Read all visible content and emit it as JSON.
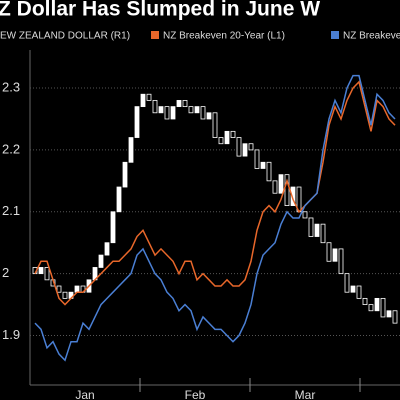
{
  "chart_data": {
    "type": "line",
    "title": "Z Dollar Has Slumped in June W",
    "legend": [
      "EW ZEALAND DOLLAR (R1)",
      "NZ Breakeven 20-Year (L1)",
      "NZ Breakeve"
    ],
    "x_labels": [
      "Jan",
      "Feb",
      "Mar"
    ],
    "ylim": [
      1.82,
      2.41
    ],
    "yticks": [
      1.9,
      2.0,
      2.1,
      2.2,
      2.3
    ],
    "grid": true,
    "candles": {
      "color_up": "#ffffff",
      "color_down": "#000000",
      "open": [
        2.01,
        2.0,
        2.01,
        1.99,
        1.98,
        1.97,
        1.96,
        1.97,
        1.98,
        1.97,
        1.99,
        2.01,
        2.03,
        2.05,
        2.1,
        2.14,
        2.18,
        2.22,
        2.27,
        2.29,
        2.28,
        2.26,
        2.27,
        2.25,
        2.27,
        2.28,
        2.27,
        2.26,
        2.27,
        2.25,
        2.26,
        2.22,
        2.21,
        2.23,
        2.22,
        2.19,
        2.21,
        2.2,
        2.17,
        2.18,
        2.15,
        2.13,
        2.16,
        2.11,
        2.14,
        2.1,
        2.09,
        2.06,
        2.08,
        2.05,
        2.02,
        2.04,
        2.0,
        1.97,
        1.98,
        1.96,
        1.95,
        1.94,
        1.96,
        1.93,
        1.94
      ],
      "close": [
        2.0,
        2.01,
        1.99,
        1.98,
        1.97,
        1.96,
        1.97,
        1.98,
        1.97,
        1.99,
        2.01,
        2.03,
        2.05,
        2.1,
        2.14,
        2.18,
        2.22,
        2.27,
        2.29,
        2.28,
        2.26,
        2.27,
        2.25,
        2.27,
        2.28,
        2.27,
        2.26,
        2.27,
        2.25,
        2.26,
        2.22,
        2.21,
        2.23,
        2.22,
        2.19,
        2.21,
        2.2,
        2.17,
        2.18,
        2.15,
        2.13,
        2.16,
        2.11,
        2.14,
        2.1,
        2.09,
        2.06,
        2.08,
        2.05,
        2.02,
        2.04,
        2.0,
        1.97,
        1.98,
        1.96,
        1.95,
        1.94,
        1.96,
        1.93,
        1.94,
        1.92
      ]
    },
    "series": [
      {
        "name": "NZ Breakeven 20-Year (L1)",
        "color": "#e8672a",
        "values": [
          2.0,
          2.02,
          2.02,
          1.99,
          1.96,
          1.95,
          1.96,
          1.97,
          1.97,
          1.98,
          1.99,
          2.0,
          2.01,
          2.02,
          2.02,
          2.03,
          2.04,
          2.06,
          2.07,
          2.05,
          2.03,
          2.04,
          2.03,
          2.02,
          2.0,
          2.02,
          2.02,
          1.99,
          2.0,
          1.99,
          1.98,
          1.98,
          1.99,
          1.98,
          1.98,
          1.99,
          2.02,
          2.07,
          2.1,
          2.11,
          2.1,
          2.12,
          2.15,
          2.12,
          2.1,
          2.11,
          2.12,
          2.13,
          2.18,
          2.24,
          2.27,
          2.25,
          2.28,
          2.3,
          2.31,
          2.27,
          2.23,
          2.28,
          2.27,
          2.25,
          2.24
        ]
      },
      {
        "name": "NZ Breakeve",
        "color": "#4a7fd4",
        "values": [
          1.92,
          1.91,
          1.88,
          1.89,
          1.87,
          1.86,
          1.89,
          1.89,
          1.92,
          1.91,
          1.93,
          1.95,
          1.96,
          1.97,
          1.98,
          1.99,
          2.0,
          2.03,
          2.04,
          2.02,
          2.0,
          1.99,
          1.97,
          1.96,
          1.94,
          1.95,
          1.94,
          1.91,
          1.93,
          1.92,
          1.91,
          1.91,
          1.9,
          1.89,
          1.9,
          1.92,
          1.95,
          2.0,
          2.03,
          2.04,
          2.05,
          2.08,
          2.1,
          2.09,
          2.09,
          2.11,
          2.12,
          2.13,
          2.2,
          2.25,
          2.28,
          2.26,
          2.3,
          2.32,
          2.32,
          2.28,
          2.24,
          2.29,
          2.28,
          2.26,
          2.25
        ]
      }
    ]
  }
}
